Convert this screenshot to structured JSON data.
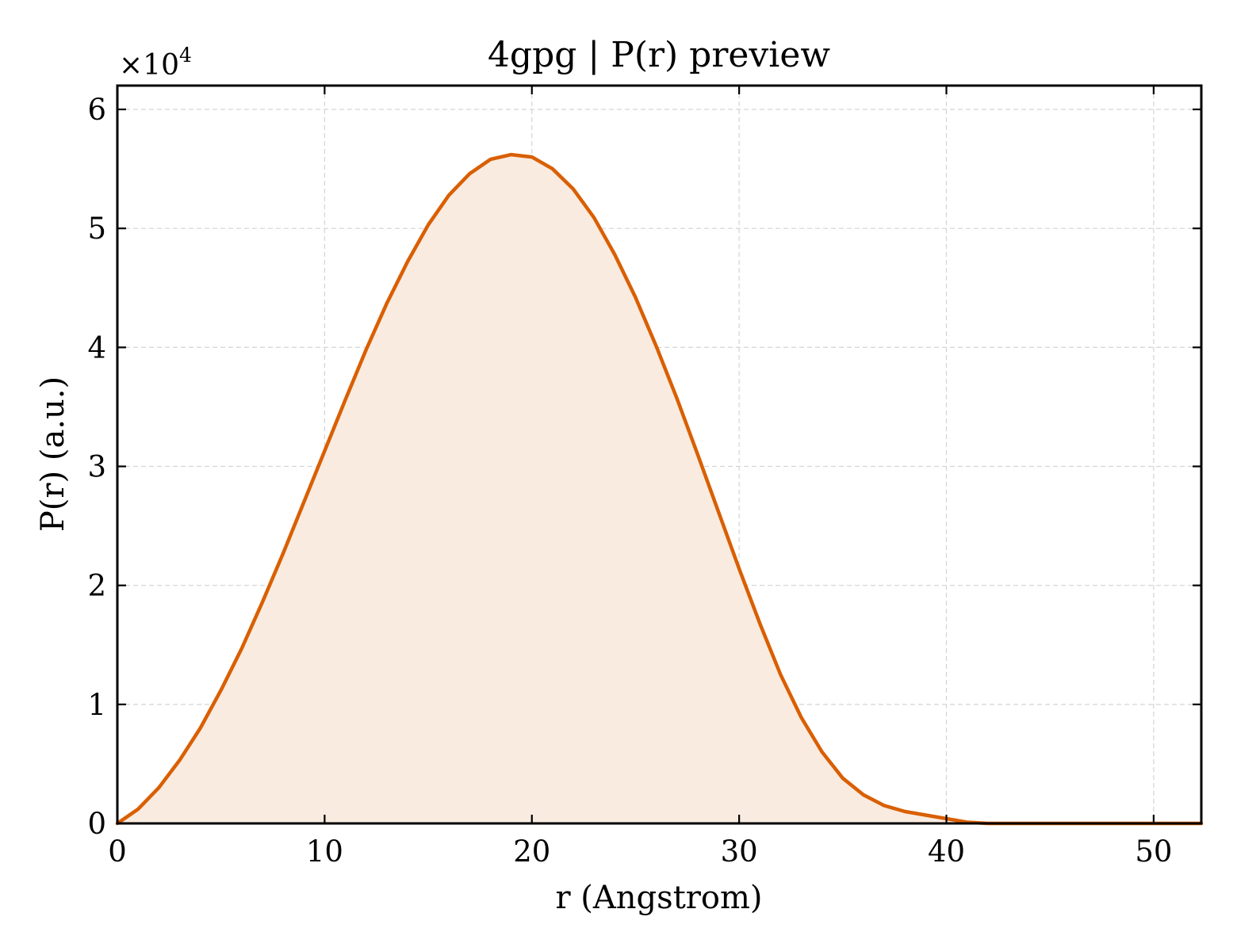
{
  "chart_data": {
    "type": "area",
    "title": "4gpg | P(r) preview",
    "xlabel": "r (Angstrom)",
    "ylabel": "P(r) (a.u.)",
    "y_multiplier": "×10",
    "y_multiplier_exp": "4",
    "xlim": [
      0,
      52.3
    ],
    "ylim": [
      0,
      6.2
    ],
    "x_ticks": [
      0,
      10,
      20,
      30,
      40,
      50
    ],
    "y_ticks": [
      0,
      1,
      2,
      3,
      4,
      5,
      6
    ],
    "grid": true,
    "line_color": "#d95f02",
    "fill_color": "#f9ebe0",
    "series": [
      {
        "x": [
          0,
          1,
          2,
          3,
          4,
          5,
          6,
          7,
          8,
          9,
          10,
          11,
          12,
          13,
          14,
          15,
          16,
          17,
          18,
          19,
          20,
          21,
          22,
          23,
          24,
          25,
          26,
          27,
          28,
          29,
          30,
          31,
          32,
          33,
          34,
          35,
          36,
          37,
          38,
          39,
          40,
          41,
          42,
          43,
          44,
          45,
          46,
          47,
          48,
          49,
          50,
          51,
          52,
          52.3
        ],
        "y": [
          0,
          0.12,
          0.3,
          0.53,
          0.8,
          1.12,
          1.47,
          1.86,
          2.27,
          2.7,
          3.13,
          3.56,
          3.98,
          4.37,
          4.72,
          5.03,
          5.28,
          5.46,
          5.58,
          5.62,
          5.6,
          5.5,
          5.33,
          5.09,
          4.78,
          4.42,
          4.01,
          3.57,
          3.1,
          2.62,
          2.14,
          1.68,
          1.25,
          0.89,
          0.6,
          0.38,
          0.24,
          0.15,
          0.1,
          0.07,
          0.04,
          0.01,
          0,
          0,
          0,
          0,
          0,
          0,
          0,
          0,
          0,
          0,
          0,
          0
        ]
      }
    ]
  }
}
